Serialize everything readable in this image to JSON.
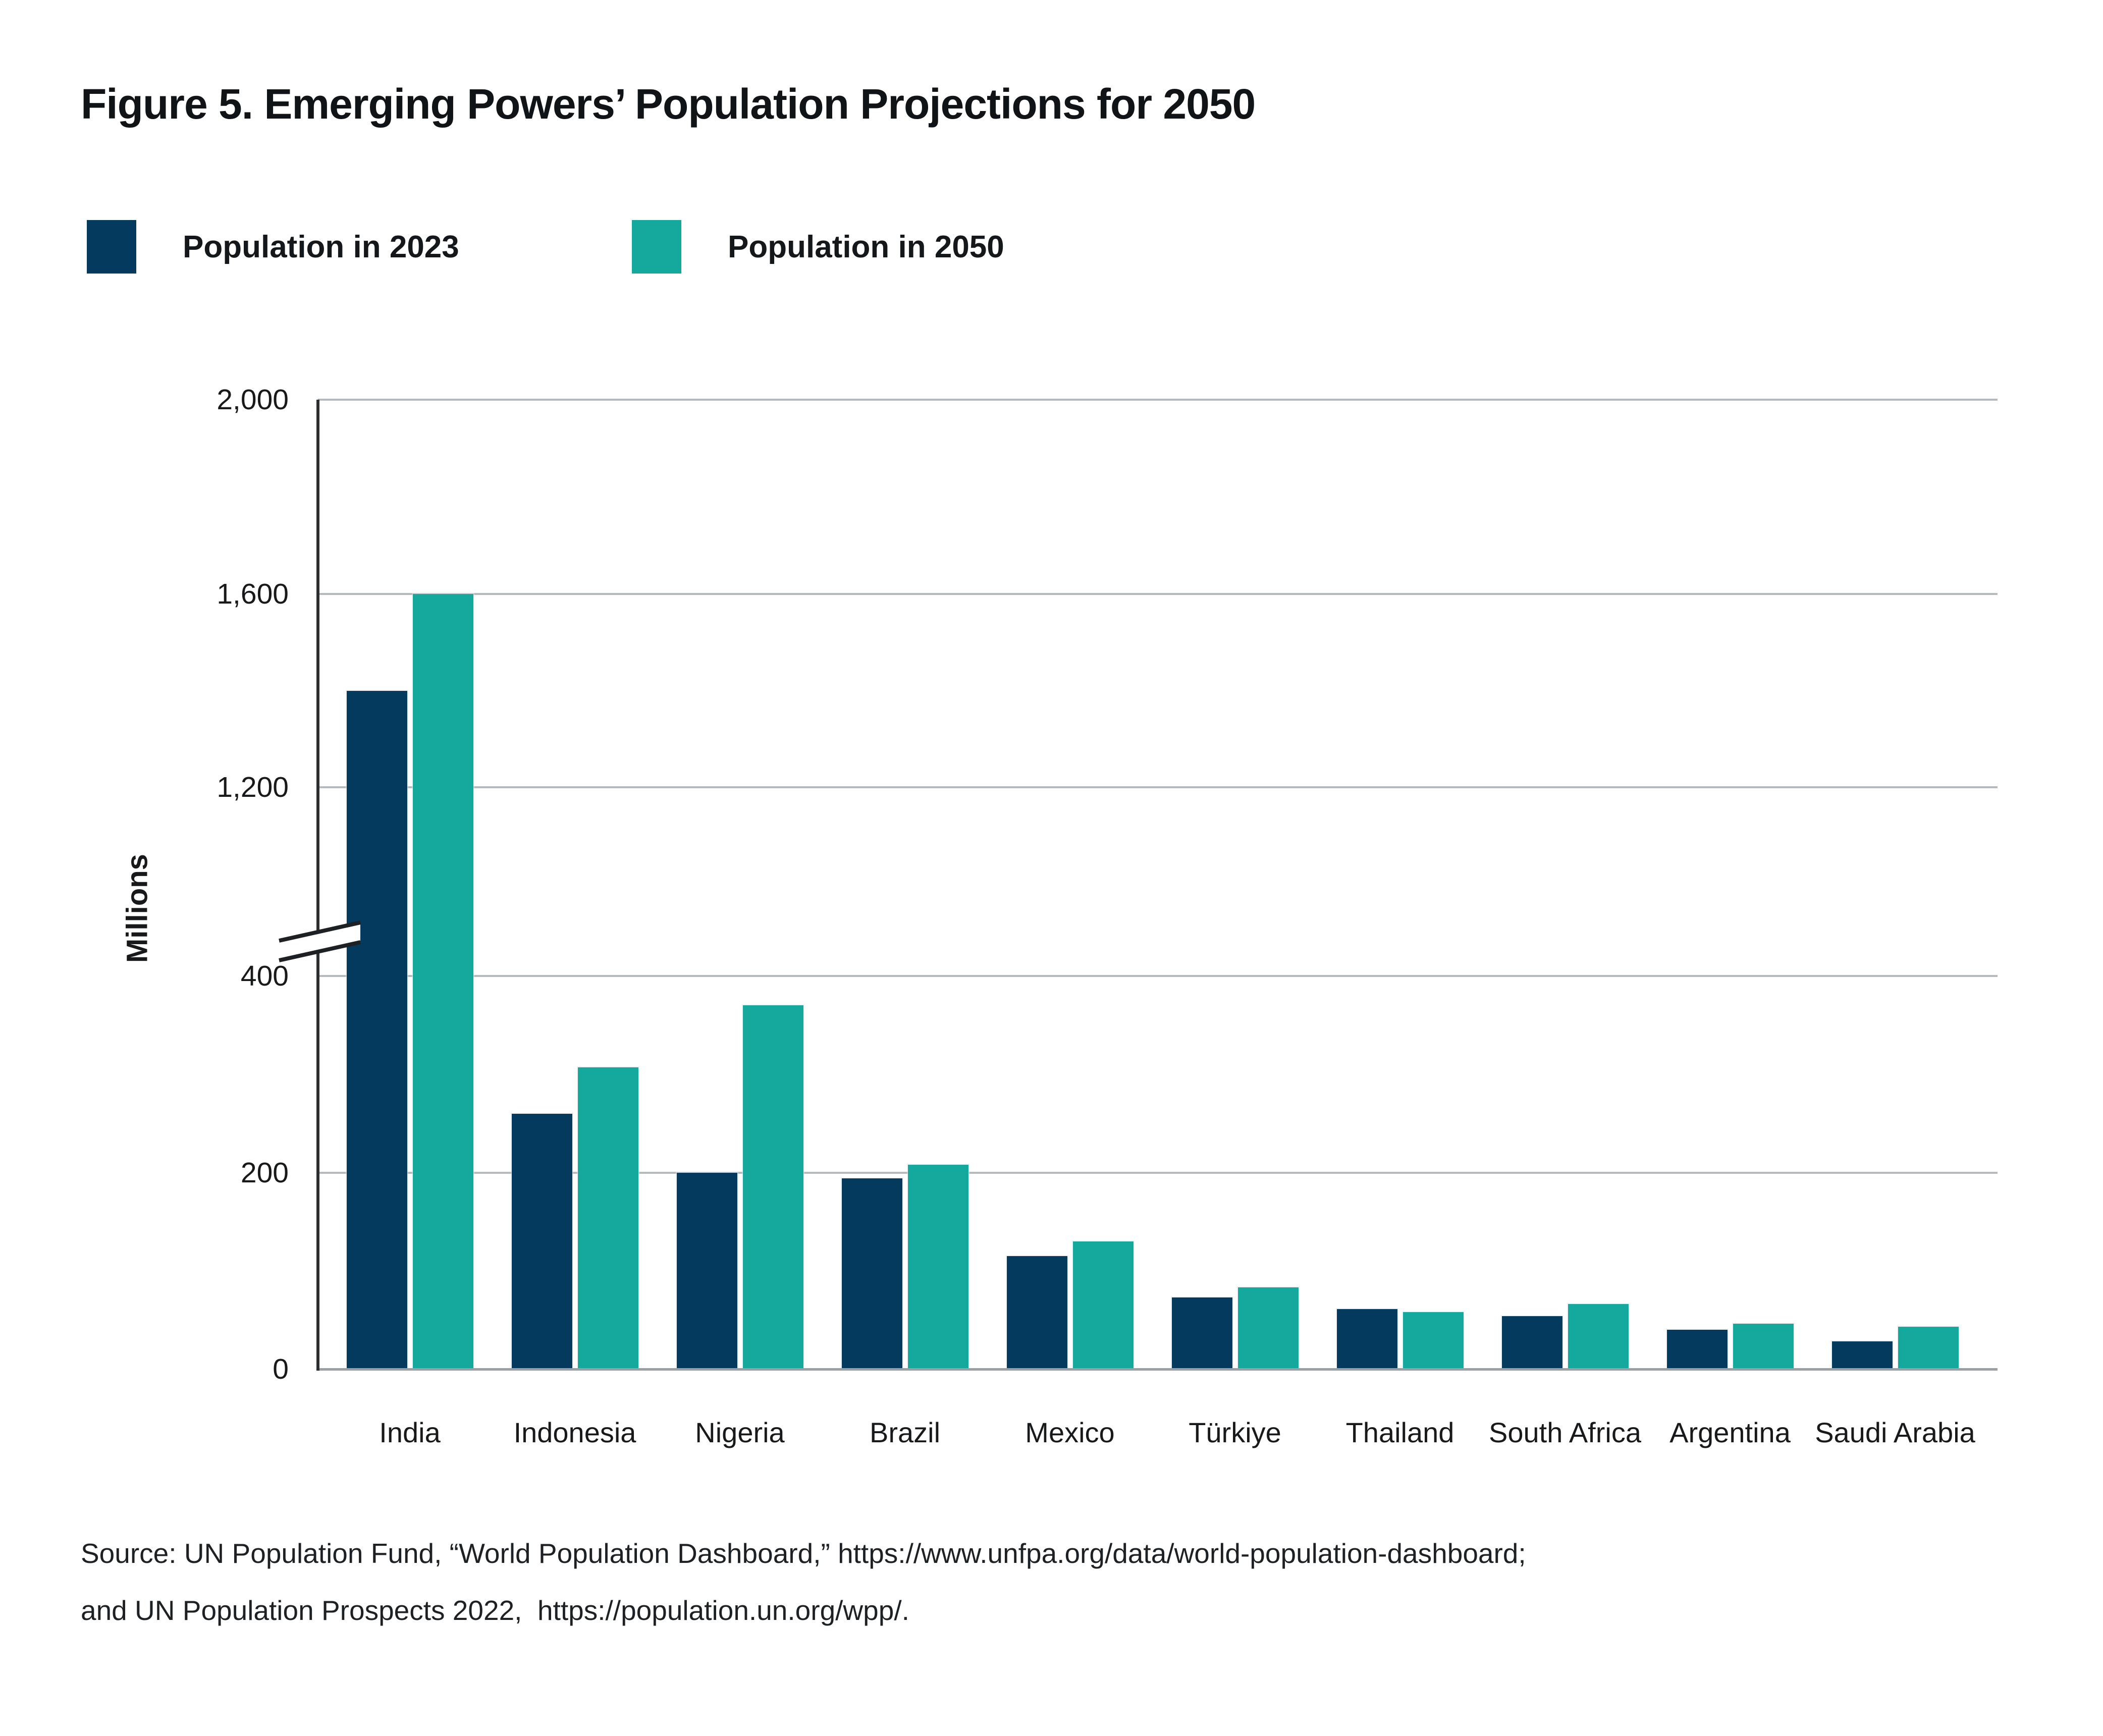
{
  "figure": {
    "title": "Figure 5. Emerging Powers’ Population Projections for 2050",
    "y_axis": {
      "title": "Millions",
      "tick_labels": [
        "0",
        "200",
        "400",
        "1,200",
        "1,600",
        "2,000"
      ]
    },
    "source_lines": [
      "Source: UN Population Fund, “World Population Dashboard,” https://www.unfpa.org/data/world-population-dashboard;",
      "and UN Population Prospects 2022,  https://population.un.org/wpp/."
    ]
  },
  "chart_data": {
    "type": "bar",
    "title": "Figure 5. Emerging Powers’ Population Projections for 2050",
    "categories": [
      "India",
      "Indonesia",
      "Nigeria",
      "Brazil",
      "Mexico",
      "Türkiye",
      "Thailand",
      "South Africa",
      "Argentina",
      "Saudi Arabia"
    ],
    "series": [
      {
        "name": "Population in 2023",
        "color": "#053a5f",
        "values": [
          1400,
          260,
          200,
          194,
          115,
          73,
          61,
          54,
          40,
          28
        ]
      },
      {
        "name": "Population in 2050",
        "color": "#15a89c",
        "values": [
          1600,
          307,
          370,
          208,
          130,
          83,
          58,
          66,
          46,
          43
        ]
      }
    ],
    "xlabel": "",
    "ylabel": "Millions",
    "y_ticks": [
      0,
      200,
      400,
      1200,
      1600,
      2000
    ],
    "ylim": [
      0,
      2000
    ],
    "axis_break": {
      "between": [
        400,
        1200
      ]
    },
    "grid": true,
    "legend_position": "top-left"
  }
}
